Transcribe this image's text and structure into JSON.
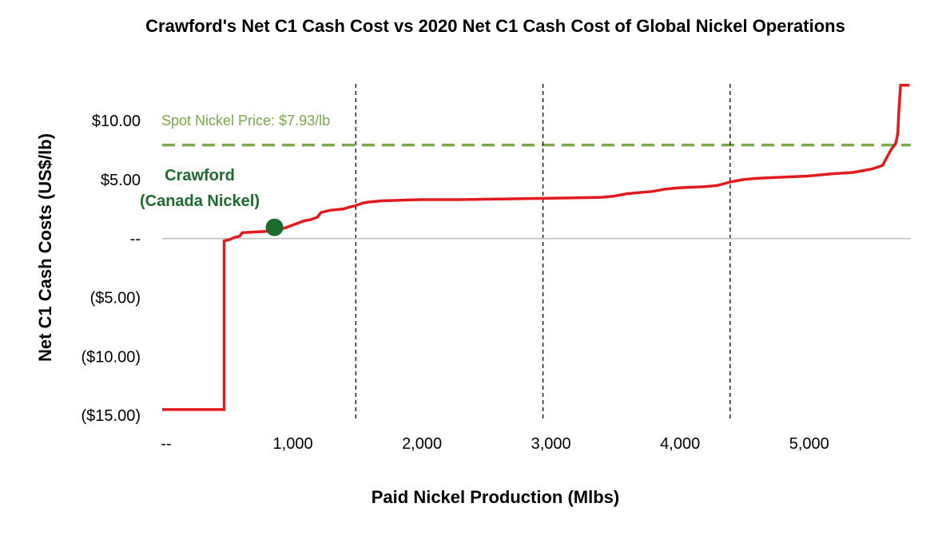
{
  "chart_data": {
    "type": "line",
    "title": "Crawford's Net C1 Cash Cost vs 2020 Net C1 Cash Cost of Global Nickel Operations",
    "xlabel": "Paid Nickel Production (Mlbs)",
    "ylabel": "Net C1 Cash Costs (US$/lb)",
    "xlim": [
      0,
      5800
    ],
    "ylim": [
      -16,
      14
    ],
    "x_ticks": [
      {
        "value": 0,
        "label": "--"
      },
      {
        "value": 1000,
        "label": "1,000"
      },
      {
        "value": 2000,
        "label": "2,000"
      },
      {
        "value": 3000,
        "label": "3,000"
      },
      {
        "value": 4000,
        "label": "4,000"
      },
      {
        "value": 5000,
        "label": "5,000"
      }
    ],
    "y_ticks": [
      {
        "value": 10,
        "label": "$10.00"
      },
      {
        "value": 5,
        "label": "$5.00"
      },
      {
        "value": 0,
        "label": "--"
      },
      {
        "value": -5,
        "label": "($5.00)"
      },
      {
        "value": -10,
        "label": "($10.00)"
      },
      {
        "value": -15,
        "label": "($15.00)"
      }
    ],
    "grid": false,
    "series": [
      {
        "color": "#e31a1c",
        "points": [
          [
            0,
            -14.5
          ],
          [
            480,
            -14.5
          ],
          [
            480,
            -0.2
          ],
          [
            520,
            -0.1
          ],
          [
            560,
            0.1
          ],
          [
            600,
            0.2
          ],
          [
            620,
            0.5
          ],
          [
            700,
            0.55
          ],
          [
            800,
            0.6
          ],
          [
            880,
            0.7
          ],
          [
            950,
            0.9
          ],
          [
            1000,
            1.1
          ],
          [
            1050,
            1.3
          ],
          [
            1100,
            1.5
          ],
          [
            1150,
            1.6
          ],
          [
            1200,
            1.8
          ],
          [
            1230,
            2.2
          ],
          [
            1300,
            2.4
          ],
          [
            1400,
            2.5
          ],
          [
            1460,
            2.7
          ],
          [
            1500,
            2.8
          ],
          [
            1550,
            3.0
          ],
          [
            1600,
            3.1
          ],
          [
            1700,
            3.2
          ],
          [
            1850,
            3.25
          ],
          [
            2000,
            3.3
          ],
          [
            2300,
            3.3
          ],
          [
            2600,
            3.35
          ],
          [
            2900,
            3.4
          ],
          [
            3200,
            3.45
          ],
          [
            3400,
            3.5
          ],
          [
            3500,
            3.6
          ],
          [
            3600,
            3.8
          ],
          [
            3700,
            3.9
          ],
          [
            3800,
            4.0
          ],
          [
            3900,
            4.2
          ],
          [
            4000,
            4.3
          ],
          [
            4200,
            4.4
          ],
          [
            4300,
            4.5
          ],
          [
            4400,
            4.8
          ],
          [
            4500,
            5.0
          ],
          [
            4600,
            5.1
          ],
          [
            4800,
            5.2
          ],
          [
            5000,
            5.3
          ],
          [
            5200,
            5.5
          ],
          [
            5350,
            5.6
          ],
          [
            5500,
            5.9
          ],
          [
            5580,
            6.2
          ],
          [
            5620,
            7.0
          ],
          [
            5650,
            7.6
          ],
          [
            5680,
            8.0
          ],
          [
            5690,
            8.4
          ],
          [
            5700,
            9.0
          ],
          [
            5705,
            10.5
          ],
          [
            5720,
            13.0
          ],
          [
            5790,
            13.0
          ]
        ]
      }
    ],
    "reference_lines": [
      {
        "orientation": "horizontal",
        "value": 7.93,
        "label": "Spot Nickel Price: $7.93/lb",
        "color": "#7aa84a",
        "style": "dashed"
      },
      {
        "orientation": "vertical",
        "value": 1500,
        "color": "#000000",
        "style": "dashed"
      },
      {
        "orientation": "vertical",
        "value": 2950,
        "color": "#000000",
        "style": "dashed"
      },
      {
        "orientation": "vertical",
        "value": 4400,
        "color": "#000000",
        "style": "dashed"
      }
    ],
    "highlight_point": {
      "x": 870,
      "y": 0.95,
      "label_line1": "Crawford",
      "label_line2": "(Canada Nickel)",
      "color": "#1e6b2e"
    }
  }
}
